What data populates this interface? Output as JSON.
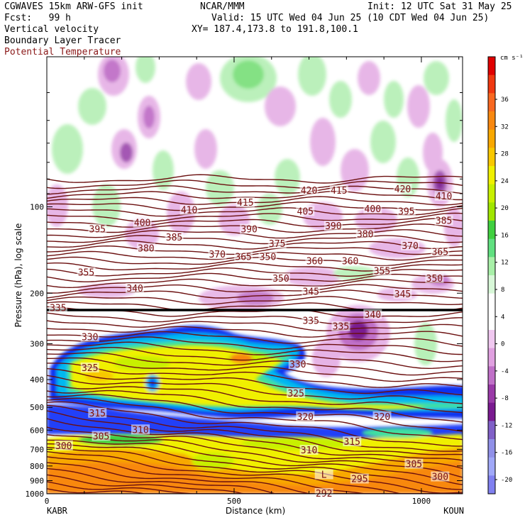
{
  "header": {
    "line1_left": "CGWAVES 15km ARW-GFS init",
    "line1_mid": "NCAR/MMM",
    "line1_right": "Init: 12 UTC Sat 31 May 25",
    "line2_left": "Fcst:   99 h",
    "line2_right": "Valid: 15 UTC Wed 04 Jun 25 (10 CDT Wed 04 Jun 25)",
    "field1": "Vertical velocity",
    "field2": "Boundary Layer Tracer",
    "field3": "Potential Temperature",
    "field3_color": "#8b1a1a",
    "xy": "XY= 187.4,173.8 to 191.8,100.1"
  },
  "chart_data": {
    "type": "heatmap",
    "xlabel": "Distance (km)",
    "ylabel": "Pressure (hPa), log scale",
    "x_ticks": [
      "0",
      "500",
      "1000"
    ],
    "x_tick_values": [
      0,
      500,
      1000
    ],
    "xlim": [
      0,
      1110
    ],
    "y_scale": "log",
    "y_ticks": [
      "100",
      "200",
      "300",
      "400",
      "500",
      "600",
      "700",
      "800",
      "900",
      "1000"
    ],
    "y_tick_values": [
      100,
      200,
      300,
      400,
      500,
      600,
      700,
      800,
      900,
      1000
    ],
    "ylim": [
      1000,
      30
    ],
    "left_endpoint": "KABR",
    "right_endpoint": "KOUN",
    "colorbar": {
      "unit": "cm s⁻¹",
      "labels": [
        "36",
        "32",
        "28",
        "24",
        "20",
        "16",
        "12",
        "8",
        "4",
        "0",
        "-4",
        "-8",
        "-12",
        "-16",
        "-20"
      ],
      "colors": [
        "#e00000",
        "#f03810",
        "#f86820",
        "#f88810",
        "#f8a800",
        "#f8c800",
        "#f0f000",
        "#c8f000",
        "#a0e600",
        "#40d040",
        "#60e080",
        "#a8f0a8",
        "#d8f8d8",
        "#ffffff",
        "#ffffff",
        "#f0c8f0",
        "#e0a0e0",
        "#c070c8",
        "#9a3aa8",
        "#7a1a90",
        "#8060c8",
        "#9090e8",
        "#a0a8f8",
        "#8080f0"
      ]
    },
    "theta_contour_labels": [
      {
        "text": "420",
        "x": 700,
        "p": 88
      },
      {
        "text": "415",
        "x": 780,
        "p": 88
      },
      {
        "text": "420",
        "x": 950,
        "p": 87
      },
      {
        "text": "415",
        "x": 530,
        "p": 97
      },
      {
        "text": "410",
        "x": 380,
        "p": 103
      },
      {
        "text": "405",
        "x": 690,
        "p": 104
      },
      {
        "text": "400",
        "x": 870,
        "p": 102
      },
      {
        "text": "395",
        "x": 960,
        "p": 104
      },
      {
        "text": "410",
        "x": 1060,
        "p": 92
      },
      {
        "text": "400",
        "x": 255,
        "p": 114
      },
      {
        "text": "390",
        "x": 765,
        "p": 117
      },
      {
        "text": "395",
        "x": 135,
        "p": 120
      },
      {
        "text": "385",
        "x": 340,
        "p": 128
      },
      {
        "text": "390",
        "x": 540,
        "p": 120
      },
      {
        "text": "380",
        "x": 850,
        "p": 125
      },
      {
        "text": "385",
        "x": 1060,
        "p": 112
      },
      {
        "text": "375",
        "x": 615,
        "p": 135
      },
      {
        "text": "370",
        "x": 970,
        "p": 137
      },
      {
        "text": "380",
        "x": 265,
        "p": 140
      },
      {
        "text": "370",
        "x": 455,
        "p": 147
      },
      {
        "text": "365",
        "x": 525,
        "p": 150
      },
      {
        "text": "350",
        "x": 590,
        "p": 150
      },
      {
        "text": "365",
        "x": 1050,
        "p": 144
      },
      {
        "text": "360",
        "x": 715,
        "p": 155
      },
      {
        "text": "360",
        "x": 810,
        "p": 155
      },
      {
        "text": "355",
        "x": 895,
        "p": 168
      },
      {
        "text": "355",
        "x": 105,
        "p": 170
      },
      {
        "text": "350",
        "x": 625,
        "p": 178
      },
      {
        "text": "350",
        "x": 1035,
        "p": 178
      },
      {
        "text": "340",
        "x": 235,
        "p": 193
      },
      {
        "text": "345",
        "x": 705,
        "p": 198
      },
      {
        "text": "345",
        "x": 950,
        "p": 202
      },
      {
        "text": "335",
        "x": 30,
        "p": 226
      },
      {
        "text": "340",
        "x": 870,
        "p": 238
      },
      {
        "text": "335",
        "x": 705,
        "p": 250
      },
      {
        "text": "335",
        "x": 785,
        "p": 262
      },
      {
        "text": "330",
        "x": 115,
        "p": 285
      },
      {
        "text": "325",
        "x": 115,
        "p": 365
      },
      {
        "text": "330",
        "x": 670,
        "p": 355
      },
      {
        "text": "325",
        "x": 665,
        "p": 448
      },
      {
        "text": "320",
        "x": 690,
        "p": 540
      },
      {
        "text": "320",
        "x": 895,
        "p": 540
      },
      {
        "text": "315",
        "x": 135,
        "p": 525
      },
      {
        "text": "315",
        "x": 815,
        "p": 660
      },
      {
        "text": "310",
        "x": 250,
        "p": 600
      },
      {
        "text": "310",
        "x": 700,
        "p": 707
      },
      {
        "text": "305",
        "x": 145,
        "p": 632
      },
      {
        "text": "305",
        "x": 980,
        "p": 790
      },
      {
        "text": "300",
        "x": 45,
        "p": 682
      },
      {
        "text": "300",
        "x": 1050,
        "p": 875
      },
      {
        "text": "295",
        "x": 835,
        "p": 890
      },
      {
        "text": "292",
        "x": 740,
        "p": 1000
      },
      {
        "text": "L",
        "x": 740,
        "p": 860
      }
    ]
  }
}
